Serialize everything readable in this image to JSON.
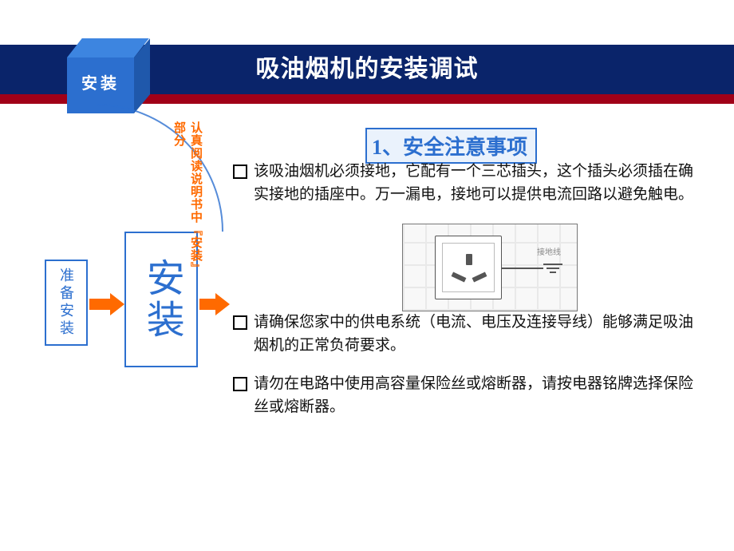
{
  "colors": {
    "header_navy": "#0a246a",
    "header_red": "#a00018",
    "accent_blue": "#2c6fcf",
    "accent_blue_dark": "#1f58ab",
    "accent_blue_light": "#3d85e0",
    "section_fill": "#eaf2fc",
    "arrow_orange": "#ff6a00",
    "text_black": "#111111",
    "page_bg": "#ffffff",
    "tile_grid": "#e9e9e9",
    "outlet_border": "#555555"
  },
  "typography": {
    "title_fontsize": 30,
    "section_title_fontsize": 26,
    "body_fontsize": 19,
    "flow_large_fontsize": 48,
    "flow_small_fontsize": 18,
    "side_note_fontsize": 15,
    "title_font": "SimHei",
    "body_font": "SimSun"
  },
  "header": {
    "tab_label": "安装",
    "title": "吸油烟机的安装调试"
  },
  "flow": {
    "prepare_label": "准备安装",
    "install_label": "安装",
    "side_note": "认真阅读说明书中『安装』部分"
  },
  "section": {
    "title": "1、安全注意事项",
    "bullets": [
      "该吸油烟机必须接地，它配有一个三芯插头，这个插头必须插在确实接地的插座中。万一漏电，接地可以提供电流回路以避免触电。",
      "请确保您家中的供电系统（电流、电压及连接导线）能够满足吸油烟机的正常负荷要求。",
      "请勿在电路中使用高容量保险丝或熔断器，请按电器铭牌选择保险丝或熔断器。"
    ]
  },
  "figure": {
    "ground_label": "接地线"
  }
}
